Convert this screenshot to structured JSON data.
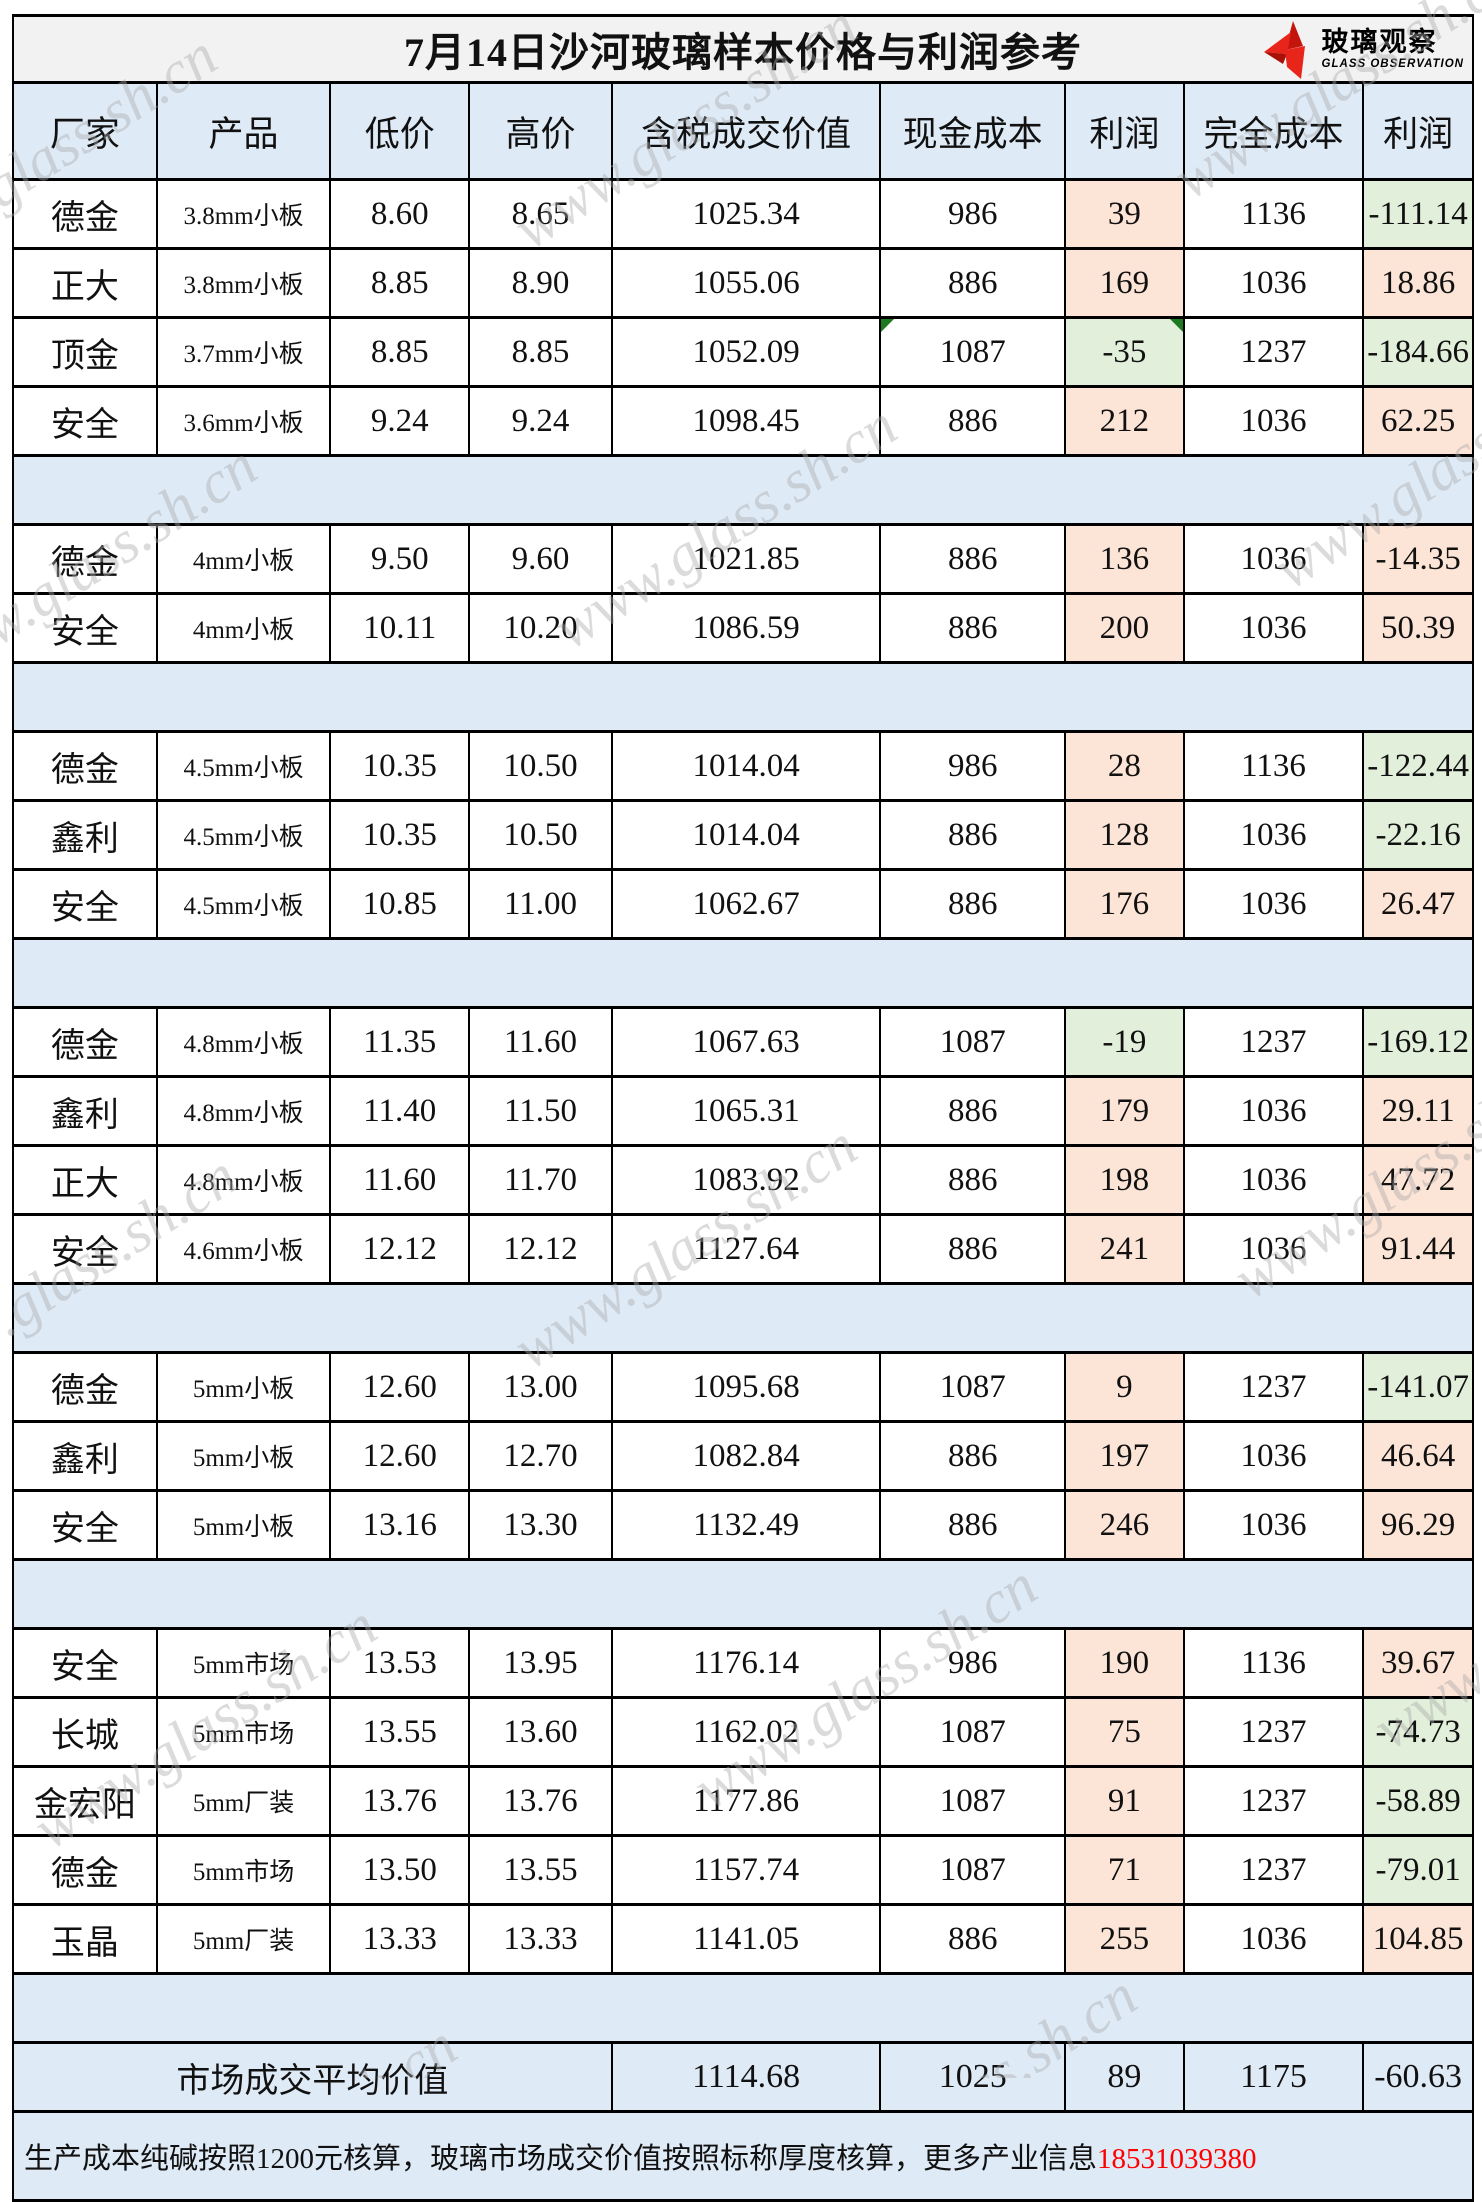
{
  "title": "7月14日沙河玻璃样本价格与利润参考",
  "logo": {
    "cn": "玻璃观察",
    "en": "GLASS OBSERVATION",
    "icon": "red-star",
    "red": "#E8251B",
    "dark_red": "#B3110A"
  },
  "watermark_text": "www.glass.sh.cn",
  "columns": [
    "厂家",
    "产品",
    "低价",
    "高价",
    "含税成交价值",
    "现金成本",
    "利润",
    "完全成本",
    "利润"
  ],
  "colors": {
    "header_blue": "#DEEAF6",
    "separator_blue": "#DEEAF6",
    "profit_orange": "#FCE4D6",
    "profit_green": "#E2EFDA",
    "title_gray": "#F2F2F2",
    "marker_green": "#1E7A1E",
    "phone_red": "#FF0000"
  },
  "groups": [
    {
      "rows": [
        {
          "factory": "德金",
          "product": "3.8mm小板",
          "low": "8.60",
          "high": "8.65",
          "value": "1025.34",
          "cash": "986",
          "profit1": "39",
          "p1": "orange",
          "full": "1136",
          "profit2": "-111.14",
          "p2": "green"
        },
        {
          "factory": "正大",
          "product": "3.8mm小板",
          "low": "8.85",
          "high": "8.90",
          "value": "1055.06",
          "cash": "886",
          "profit1": "169",
          "p1": "orange",
          "full": "1036",
          "profit2": "18.86",
          "p2": "orange"
        },
        {
          "factory": "顶金",
          "product": "3.7mm小板",
          "low": "8.85",
          "high": "8.85",
          "value": "1052.09",
          "cash": "1087",
          "profit1": "-35",
          "p1": "green",
          "full": "1237",
          "profit2": "-184.66",
          "p2": "green",
          "cash_mark": true,
          "p1_mark": true
        },
        {
          "factory": "安全",
          "product": "3.6mm小板",
          "low": "9.24",
          "high": "9.24",
          "value": "1098.45",
          "cash": "886",
          "profit1": "212",
          "p1": "orange",
          "full": "1036",
          "profit2": "62.25",
          "p2": "orange"
        }
      ]
    },
    {
      "rows": [
        {
          "factory": "德金",
          "product": "4mm小板",
          "low": "9.50",
          "high": "9.60",
          "value": "1021.85",
          "cash": "886",
          "profit1": "136",
          "p1": "orange",
          "full": "1036",
          "profit2": "-14.35",
          "p2": "orange"
        },
        {
          "factory": "安全",
          "product": "4mm小板",
          "low": "10.11",
          "high": "10.20",
          "value": "1086.59",
          "cash": "886",
          "profit1": "200",
          "p1": "orange",
          "full": "1036",
          "profit2": "50.39",
          "p2": "orange"
        }
      ]
    },
    {
      "rows": [
        {
          "factory": "德金",
          "product": "4.5mm小板",
          "low": "10.35",
          "high": "10.50",
          "value": "1014.04",
          "cash": "986",
          "profit1": "28",
          "p1": "orange",
          "full": "1136",
          "profit2": "-122.44",
          "p2": "green"
        },
        {
          "factory": "鑫利",
          "product": "4.5mm小板",
          "low": "10.35",
          "high": "10.50",
          "value": "1014.04",
          "cash": "886",
          "profit1": "128",
          "p1": "orange",
          "full": "1036",
          "profit2": "-22.16",
          "p2": "green"
        },
        {
          "factory": "安全",
          "product": "4.5mm小板",
          "low": "10.85",
          "high": "11.00",
          "value": "1062.67",
          "cash": "886",
          "profit1": "176",
          "p1": "orange",
          "full": "1036",
          "profit2": "26.47",
          "p2": "orange"
        }
      ]
    },
    {
      "rows": [
        {
          "factory": "德金",
          "product": "4.8mm小板",
          "low": "11.35",
          "high": "11.60",
          "value": "1067.63",
          "cash": "1087",
          "profit1": "-19",
          "p1": "green",
          "full": "1237",
          "profit2": "-169.12",
          "p2": "green"
        },
        {
          "factory": "鑫利",
          "product": "4.8mm小板",
          "low": "11.40",
          "high": "11.50",
          "value": "1065.31",
          "cash": "886",
          "profit1": "179",
          "p1": "orange",
          "full": "1036",
          "profit2": "29.11",
          "p2": "orange"
        },
        {
          "factory": "正大",
          "product": "4.8mm小板",
          "low": "11.60",
          "high": "11.70",
          "value": "1083.92",
          "cash": "886",
          "profit1": "198",
          "p1": "orange",
          "full": "1036",
          "profit2": "47.72",
          "p2": "orange"
        },
        {
          "factory": "安全",
          "product": "4.6mm小板",
          "low": "12.12",
          "high": "12.12",
          "value": "1127.64",
          "cash": "886",
          "profit1": "241",
          "p1": "orange",
          "full": "1036",
          "profit2": "91.44",
          "p2": "orange"
        }
      ]
    },
    {
      "rows": [
        {
          "factory": "德金",
          "product": "5mm小板",
          "low": "12.60",
          "high": "13.00",
          "value": "1095.68",
          "cash": "1087",
          "profit1": "9",
          "p1": "orange",
          "full": "1237",
          "profit2": "-141.07",
          "p2": "green"
        },
        {
          "factory": "鑫利",
          "product": "5mm小板",
          "low": "12.60",
          "high": "12.70",
          "value": "1082.84",
          "cash": "886",
          "profit1": "197",
          "p1": "orange",
          "full": "1036",
          "profit2": "46.64",
          "p2": "orange"
        },
        {
          "factory": "安全",
          "product": "5mm小板",
          "low": "13.16",
          "high": "13.30",
          "value": "1132.49",
          "cash": "886",
          "profit1": "246",
          "p1": "orange",
          "full": "1036",
          "profit2": "96.29",
          "p2": "orange"
        }
      ]
    },
    {
      "rows": [
        {
          "factory": "安全",
          "product": "5mm市场",
          "low": "13.53",
          "high": "13.95",
          "value": "1176.14",
          "cash": "986",
          "profit1": "190",
          "p1": "orange",
          "full": "1136",
          "profit2": "39.67",
          "p2": "orange"
        },
        {
          "factory": "长城",
          "product": "5mm市场",
          "low": "13.55",
          "high": "13.60",
          "value": "1162.02",
          "cash": "1087",
          "profit1": "75",
          "p1": "orange",
          "full": "1237",
          "profit2": "-74.73",
          "p2": "green"
        },
        {
          "factory": "金宏阳",
          "product": "5mm厂装",
          "low": "13.76",
          "high": "13.76",
          "value": "1177.86",
          "cash": "1087",
          "profit1": "91",
          "p1": "orange",
          "full": "1237",
          "profit2": "-58.89",
          "p2": "green"
        },
        {
          "factory": "德金",
          "product": "5mm市场",
          "low": "13.50",
          "high": "13.55",
          "value": "1157.74",
          "cash": "1087",
          "profit1": "71",
          "p1": "orange",
          "full": "1237",
          "profit2": "-79.01",
          "p2": "green"
        },
        {
          "factory": "玉晶",
          "product": "5mm厂装",
          "low": "13.33",
          "high": "13.33",
          "value": "1141.05",
          "cash": "886",
          "profit1": "255",
          "p1": "orange",
          "full": "1036",
          "profit2": "104.85",
          "p2": "orange"
        }
      ]
    }
  ],
  "summary": {
    "label": "市场成交平均价值",
    "value": "1114.68",
    "cash": "1025",
    "profit1": "89",
    "full": "1175",
    "profit2": "-60.63"
  },
  "footer": {
    "text": "生产成本纯碱按照1200元核算，玻璃市场成交价值按照标称厚度核算，更多产业信息",
    "phone": "18531039380"
  }
}
